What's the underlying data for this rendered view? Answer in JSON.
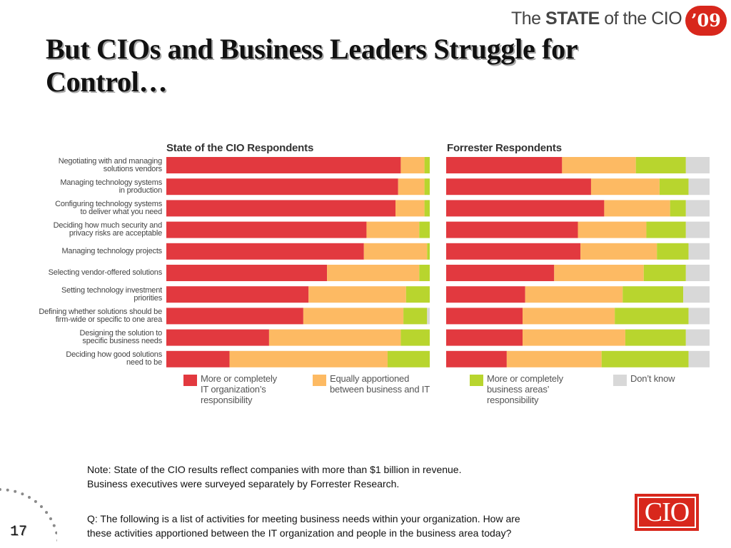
{
  "brand": {
    "pre": "The ",
    "bold": "STATE",
    "post": " of the CIO",
    "year": "’09"
  },
  "title": "But CIOs and Business Leaders Struggle for Control…",
  "page_number": "17",
  "logo": "CIO",
  "notes": {
    "note": "Note: State of the CIO results reflect companies with more than $1 billion in revenue.\nBusiness executives were surveyed separately by Forrester Research.",
    "question": "Q: The following is a list of activities for meeting business needs within your organization.  How are\nthese activities apportioned between the IT organization and people in the business area today?"
  },
  "colors": {
    "it": "#e2393f",
    "equal": "#fdba63",
    "business": "#b8d52e",
    "dont_know": "#d8d8d8",
    "brand_red": "#d8271c"
  },
  "chart_data": {
    "type": "bar",
    "orientation": "horizontal-stacked-100",
    "categories": [
      "Negotiating with and managing\nsolutions vendors",
      "Managing technology systems\nin production",
      "Configuring technology systems\nto deliver what you need",
      "Deciding how much security and\nprivacy risks are acceptable",
      "Managing technology projects",
      "Selecting vendor-offered solutions",
      "Setting technology investment\npriorities",
      "Defining whether solutions should be\nfirm-wide or specific to one area",
      "Designing the solution to\nspecific business needs",
      "Deciding how good solutions\nneed to be"
    ],
    "legend": [
      {
        "label": "More or completely\nIT organization’s\nresponsibility",
        "color_key": "it"
      },
      {
        "label": "Equally apportioned\nbetween business and IT",
        "color_key": "equal"
      },
      {
        "label": "More or completely\nbusiness areas’\nresponsibility",
        "color_key": "business"
      },
      {
        "label": "Don’t know",
        "color_key": "dont_know"
      }
    ],
    "xlim": [
      0,
      100
    ],
    "panels": [
      {
        "title": "State of the CIO Respondents",
        "series": [
          {
            "name": "More or completely IT organization’s responsibility",
            "values": [
              89,
              88,
              87,
              76,
              75,
              61,
              54,
              52,
              39,
              24
            ]
          },
          {
            "name": "Equally apportioned between business and IT",
            "values": [
              9,
              10,
              11,
              20,
              24,
              35,
              37,
              38,
              50,
              60
            ]
          },
          {
            "name": "More or completely business areas’ responsibility",
            "values": [
              2,
              2,
              2,
              4,
              1,
              4,
              9,
              9,
              11,
              16
            ]
          },
          {
            "name": "Don’t know",
            "values": [
              0,
              0,
              0,
              0,
              0,
              0,
              0,
              1,
              0,
              0
            ]
          }
        ]
      },
      {
        "title": "Forrester Respondents",
        "series": [
          {
            "name": "More or completely IT organization’s responsibility",
            "values": [
              44,
              55,
              60,
              50,
              51,
              41,
              30,
              29,
              29,
              23
            ]
          },
          {
            "name": "Equally apportioned between business and IT",
            "values": [
              28,
              26,
              25,
              26,
              29,
              34,
              37,
              35,
              39,
              36
            ]
          },
          {
            "name": "More or completely business areas’ responsibility",
            "values": [
              19,
              11,
              6,
              15,
              12,
              16,
              23,
              28,
              23,
              33
            ]
          },
          {
            "name": "Don’t know",
            "values": [
              9,
              8,
              9,
              9,
              8,
              9,
              10,
              8,
              9,
              8
            ]
          }
        ]
      }
    ]
  }
}
